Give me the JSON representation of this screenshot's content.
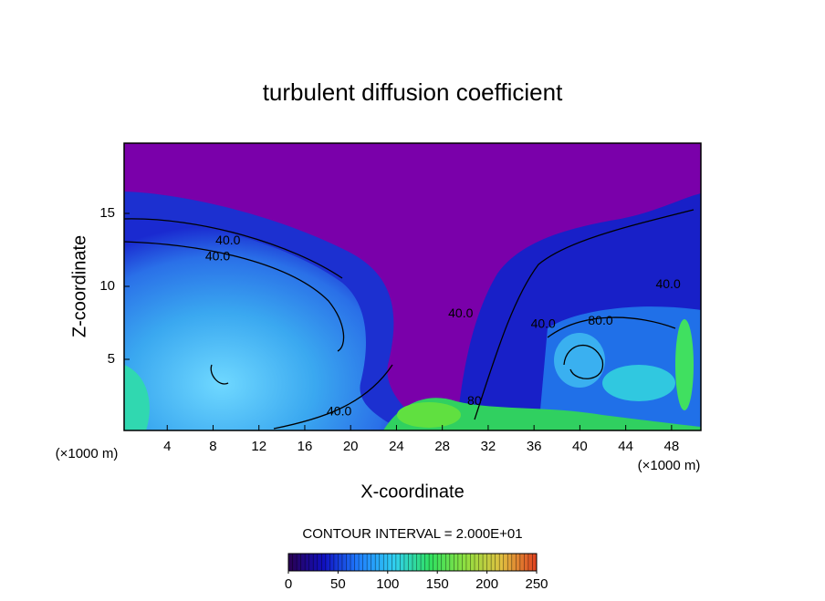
{
  "chart_data": {
    "type": "contour",
    "title": "turbulent diffusion coefficient",
    "xlabel": "X-coordinate",
    "ylabel": "Z-coordinate",
    "x_unit_label": "(×1000 m)",
    "y_unit_label": "(×1000 m)",
    "xlim": [
      0,
      50
    ],
    "ylim": [
      0,
      20
    ],
    "xticks": [
      4,
      8,
      12,
      16,
      20,
      24,
      28,
      32,
      36,
      40,
      44,
      48
    ],
    "yticks": [
      5,
      10,
      15
    ],
    "contour_interval_label": "CONTOUR INTERVAL = 2.000E+01",
    "contour_labels": [
      {
        "text": "40.0",
        "x": 9.3,
        "y": 13.1
      },
      {
        "text": "40.0",
        "x": 8.4,
        "y": 12.0
      },
      {
        "text": "40.0",
        "x": 29.6,
        "y": 8.1
      },
      {
        "text": "40.0",
        "x": 36.8,
        "y": 7.4
      },
      {
        "text": "80.0",
        "x": 41.8,
        "y": 7.6
      },
      {
        "text": "40.0",
        "x": 47.7,
        "y": 10.1
      },
      {
        "text": "40.0",
        "x": 19.0,
        "y": 1.4
      },
      {
        "text": "80",
        "x": 30.8,
        "y": 2.1
      }
    ],
    "colorbar": {
      "lim": [
        0,
        250
      ],
      "ticks": [
        0,
        50,
        100,
        150,
        200,
        250
      ],
      "colormap": [
        "#2a0050",
        "#1010c0",
        "#2080ff",
        "#30d0f0",
        "#30e060",
        "#90e040",
        "#e0c040",
        "#e04020"
      ]
    }
  }
}
